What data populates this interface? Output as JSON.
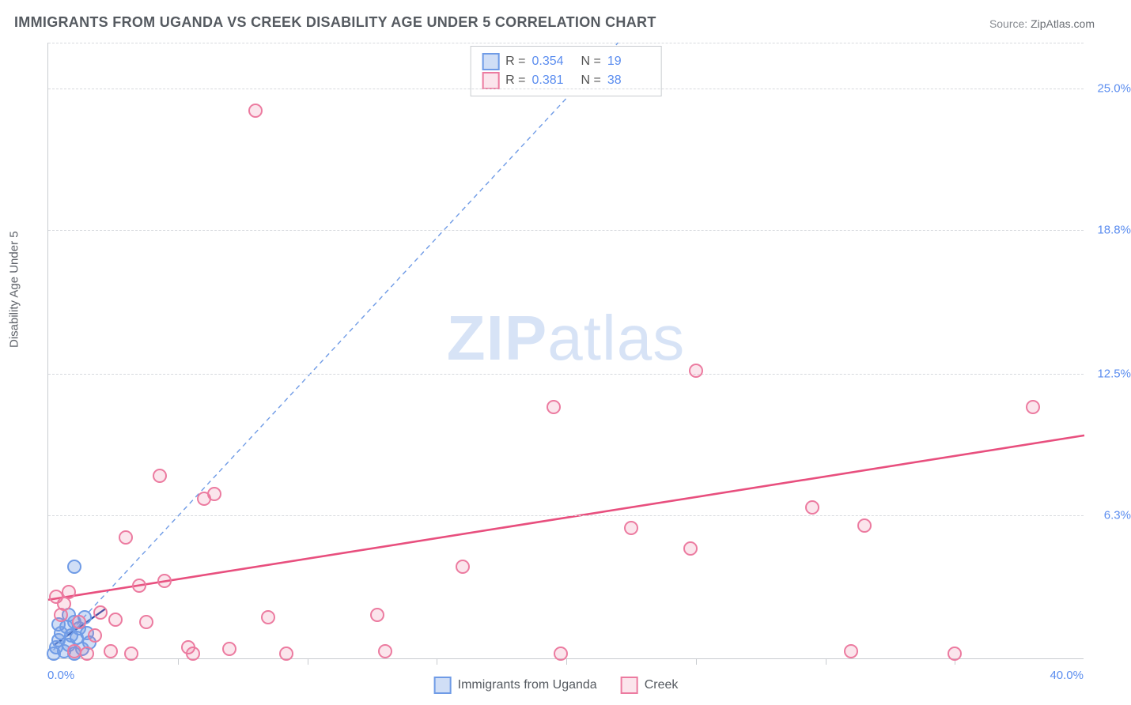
{
  "title": "IMMIGRANTS FROM UGANDA VS CREEK DISABILITY AGE UNDER 5 CORRELATION CHART",
  "source_prefix": "Source: ",
  "source_name": "ZipAtlas.com",
  "ylabel": "Disability Age Under 5",
  "watermark_bold": "ZIP",
  "watermark_rest": "atlas",
  "chart": {
    "type": "scatter",
    "xlim": [
      0,
      40
    ],
    "ylim": [
      0,
      27
    ],
    "x_min_label": "0.0%",
    "x_max_label": "40.0%",
    "y_ticks": [
      {
        "value": 6.3,
        "label": "6.3%"
      },
      {
        "value": 12.5,
        "label": "12.5%"
      },
      {
        "value": 18.8,
        "label": "18.8%"
      },
      {
        "value": 25.0,
        "label": "25.0%"
      }
    ],
    "x_tick_positions": [
      5,
      10,
      15,
      20,
      25,
      30,
      35
    ],
    "background_color": "#ffffff",
    "grid_color": "#d7dade",
    "axis_color": "#c9ccd0",
    "series": [
      {
        "name": "Immigrants from Uganda",
        "color_fill": "rgba(120,160,230,0.35)",
        "color_stroke": "#6f9be6",
        "marker_size": 14,
        "R": "0.354",
        "N": "19",
        "trend": {
          "x1": 0.2,
          "y1": 0.4,
          "x2": 22,
          "y2": 27,
          "stroke": "#6f9be6",
          "dash": "6 5",
          "width": 1.4
        },
        "trend_short": {
          "x1": 0.2,
          "y1": 0.6,
          "x2": 2.2,
          "y2": 2.2,
          "stroke": "#2c4da8",
          "dash": "none",
          "width": 2.2
        },
        "points": [
          {
            "x": 0.2,
            "y": 0.2
          },
          {
            "x": 0.3,
            "y": 0.5
          },
          {
            "x": 0.4,
            "y": 0.8
          },
          {
            "x": 0.5,
            "y": 1.1
          },
          {
            "x": 0.6,
            "y": 0.3
          },
          {
            "x": 0.7,
            "y": 1.4
          },
          {
            "x": 0.8,
            "y": 0.6
          },
          {
            "x": 0.9,
            "y": 1.0
          },
          {
            "x": 1.0,
            "y": 1.6
          },
          {
            "x": 1.1,
            "y": 0.9
          },
          {
            "x": 1.2,
            "y": 1.3
          },
          {
            "x": 1.3,
            "y": 0.4
          },
          {
            "x": 1.4,
            "y": 1.8
          },
          {
            "x": 0.4,
            "y": 1.5
          },
          {
            "x": 0.8,
            "y": 1.9
          },
          {
            "x": 1.0,
            "y": 0.2
          },
          {
            "x": 1.5,
            "y": 1.1
          },
          {
            "x": 1.6,
            "y": 0.7
          },
          {
            "x": 1.0,
            "y": 4.0
          }
        ]
      },
      {
        "name": "Creek",
        "color_fill": "rgba(235,110,150,0.18)",
        "color_stroke": "#ec7ba0",
        "marker_size": 14,
        "R": "0.381",
        "N": "38",
        "trend": {
          "x1": 0,
          "y1": 2.6,
          "x2": 40,
          "y2": 9.8,
          "stroke": "#e84f7e",
          "dash": "none",
          "width": 2.6
        },
        "points": [
          {
            "x": 0.3,
            "y": 2.7
          },
          {
            "x": 0.5,
            "y": 1.9
          },
          {
            "x": 0.6,
            "y": 2.4
          },
          {
            "x": 0.8,
            "y": 2.9
          },
          {
            "x": 1.0,
            "y": 0.3
          },
          {
            "x": 1.2,
            "y": 1.6
          },
          {
            "x": 1.5,
            "y": 0.2
          },
          {
            "x": 1.8,
            "y": 1.0
          },
          {
            "x": 2.0,
            "y": 2.0
          },
          {
            "x": 2.4,
            "y": 0.3
          },
          {
            "x": 2.6,
            "y": 1.7
          },
          {
            "x": 3.0,
            "y": 5.3
          },
          {
            "x": 3.2,
            "y": 0.2
          },
          {
            "x": 3.5,
            "y": 3.2
          },
          {
            "x": 3.8,
            "y": 1.6
          },
          {
            "x": 4.3,
            "y": 8.0
          },
          {
            "x": 4.5,
            "y": 3.4
          },
          {
            "x": 5.4,
            "y": 0.5
          },
          {
            "x": 5.6,
            "y": 0.2
          },
          {
            "x": 6.0,
            "y": 7.0
          },
          {
            "x": 6.4,
            "y": 7.2
          },
          {
            "x": 7.0,
            "y": 0.4
          },
          {
            "x": 8.5,
            "y": 1.8
          },
          {
            "x": 8.0,
            "y": 24.0
          },
          {
            "x": 9.2,
            "y": 0.2
          },
          {
            "x": 12.7,
            "y": 1.9
          },
          {
            "x": 13.0,
            "y": 0.3
          },
          {
            "x": 16.0,
            "y": 4.0
          },
          {
            "x": 19.5,
            "y": 11.0
          },
          {
            "x": 19.8,
            "y": 0.2
          },
          {
            "x": 22.5,
            "y": 5.7
          },
          {
            "x": 24.8,
            "y": 4.8
          },
          {
            "x": 25.0,
            "y": 12.6
          },
          {
            "x": 29.5,
            "y": 6.6
          },
          {
            "x": 31.0,
            "y": 0.3
          },
          {
            "x": 31.5,
            "y": 5.8
          },
          {
            "x": 35.0,
            "y": 0.2
          },
          {
            "x": 38.0,
            "y": 11.0
          }
        ]
      }
    ]
  },
  "statbox": {
    "r_label": "R =",
    "n_label": "N ="
  },
  "legend": [
    {
      "swatch": "blue",
      "label": "Immigrants from Uganda"
    },
    {
      "swatch": "pink",
      "label": "Creek"
    }
  ]
}
